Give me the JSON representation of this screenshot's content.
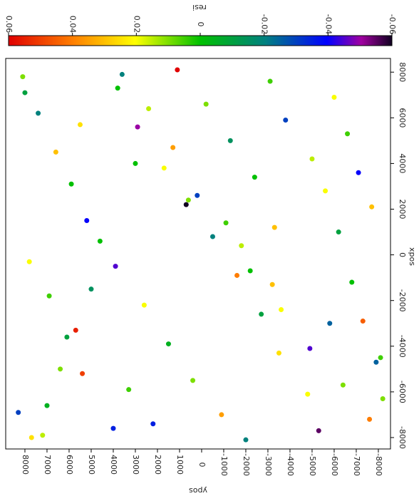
{
  "chart_data": {
    "type": "scatter",
    "title": "resi",
    "xlabel": "xpos",
    "ylabel": "ypos",
    "xlim": [
      -8500,
      8600
    ],
    "xticks": [
      -8000,
      -6000,
      -4000,
      -2000,
      0,
      2000,
      4000,
      6000,
      8000
    ],
    "ylim": [
      -8550,
      8870
    ],
    "yticks": [
      -8000,
      -7000,
      -6000,
      -5000,
      -4000,
      -3000,
      -2000,
      -1000,
      0,
      1000,
      2000,
      3000,
      4000,
      5000,
      6000,
      7000,
      8000
    ],
    "clim": [
      -0.06,
      0.06
    ],
    "cticks": [
      -0.06,
      -0.04,
      -0.02,
      0,
      0.02,
      0.04,
      0.06
    ],
    "x": [
      7800,
      6200,
      4500,
      3100,
      1500,
      -300,
      -1800,
      -3600,
      -5200,
      -6900,
      -7900,
      7300,
      5600,
      3800,
      2400,
      800,
      -900,
      -2600,
      -4300,
      -5900,
      -7400,
      8100,
      6600,
      5000,
      3400,
      1200,
      -500,
      -2200,
      -3900,
      -5500,
      -7000,
      -8100,
      7600,
      5900,
      4200,
      2800,
      1000,
      -1200,
      -2900,
      -4700,
      -6300,
      -7700,
      6900,
      5300,
      3600,
      2100,
      600,
      -1500,
      -3300,
      -5000,
      -6600,
      -8000,
      7900,
      6400,
      4700,
      2600,
      1400,
      -700,
      -2400,
      -4100,
      -5700,
      -7200,
      7100,
      5700,
      4000,
      2200,
      400,
      -1300,
      -3000,
      -4500,
      -6100,
      -7600
    ],
    "y": [
      8100,
      7400,
      6600,
      5900,
      5200,
      7800,
      6900,
      6100,
      5400,
      8300,
      7200,
      3800,
      2900,
      1700,
      600,
      -500,
      -1600,
      -2700,
      -3500,
      3300,
      2200,
      1100,
      -200,
      -1300,
      -2400,
      -3300,
      3900,
      2600,
      1500,
      400,
      -900,
      -2000,
      -3100,
      -3800,
      -5000,
      -5600,
      -6200,
      -6800,
      -7300,
      -7900,
      -8200,
      -5300,
      -6000,
      -6600,
      -7100,
      -7700,
      4600,
      5000,
      5700,
      6400,
      7000,
      7700,
      3600,
      2400,
      1300,
      200,
      -1100,
      -2200,
      -3600,
      -4900,
      -6400,
      -7600,
      8000,
      5500,
      3000,
      700,
      -1800,
      -3200,
      -5800,
      -8100,
      -4800,
      4000
    ],
    "values": [
      0.01,
      -0.02,
      0.03,
      0,
      -0.04,
      0.02,
      0.005,
      -0.01,
      0.05,
      -0.03,
      0.015,
      0,
      -0.05,
      0.02,
      0.01,
      -0.02,
      0.04,
      -0.01,
      0.025,
      0.005,
      -0.035,
      0.06,
      0.01,
      -0.015,
      0,
      0.03,
      -0.045,
      0.02,
      -0.005,
      0.01,
      0.035,
      -0.02,
      0.005,
      -0.03,
      0.015,
      0.02,
      -0.01,
      0,
      0.045,
      -0.025,
      0.01,
      -0.055,
      0.02,
      0.005,
      -0.04,
      0.03,
      0,
      -0.015,
      0.055,
      0.01,
      -0.005,
      0.025,
      -0.02,
      0.015,
      0.035,
      -0.03,
      0.005,
      0,
      0.02,
      -0.045,
      0.01,
      0.04,
      -0.01,
      0.025,
      0,
      -0.06,
      0.015,
      0.03,
      -0.025,
      0.005,
      0.02,
      -0.035
    ]
  }
}
